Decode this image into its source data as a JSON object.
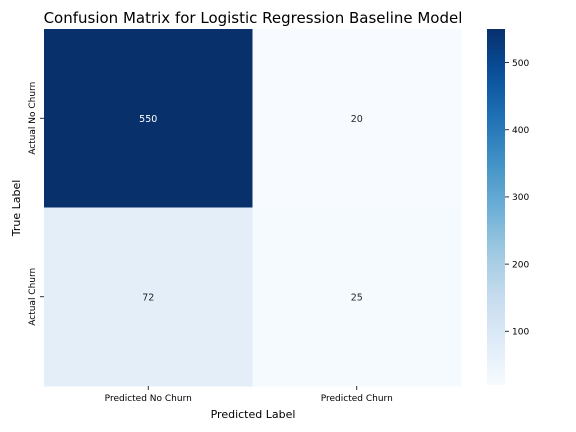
{
  "chart_data": {
    "type": "heatmap",
    "title": "Confusion Matrix for Logistic Regression Baseline Model",
    "xlabel": "Predicted Label",
    "ylabel": "True Label",
    "x_categories": [
      "Predicted No Churn",
      "Predicted Churn"
    ],
    "y_categories": [
      "Actual No Churn",
      "Actual Churn"
    ],
    "values": [
      [
        550,
        20
      ],
      [
        72,
        25
      ]
    ],
    "colormap": "Blues",
    "colorbar": {
      "min": 20,
      "max": 550,
      "ticks": [
        100,
        200,
        300,
        400,
        500
      ]
    },
    "annotations": true,
    "grid": false,
    "annotation_colors": {
      "light": "#ffffff",
      "dark": "#262626"
    }
  }
}
